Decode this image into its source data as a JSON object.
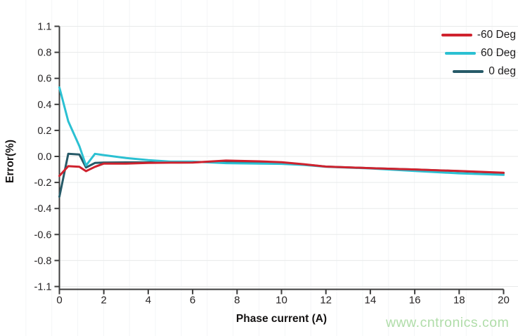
{
  "watermark": {
    "text": "www.cntronics.com",
    "color": "#b0dda9"
  },
  "chart_data": {
    "type": "line",
    "title": "",
    "xlabel": "Phase current (A)",
    "ylabel": "Error(%)",
    "xlim": [
      0,
      20
    ],
    "ylim": [
      -1.1,
      1.1
    ],
    "x_ticks": [
      0,
      2,
      4,
      6,
      8,
      10,
      12,
      14,
      16,
      18,
      20
    ],
    "y_tick_labels": [
      "1.1",
      "0.8",
      "0.6",
      "0.4",
      "0.2",
      "0.0",
      "-0.2",
      "-0.4",
      "-0.6",
      "-0.8",
      "-1.1"
    ],
    "grid": "horizontal",
    "legend_position": "top-right",
    "axis_color": "#3c3c3c",
    "grid_color": "#e8eaea",
    "x": [
      0,
      0.4,
      0.9,
      1.2,
      1.6,
      2,
      3,
      4,
      5,
      6,
      7.5,
      9,
      10,
      11,
      12,
      14,
      16,
      18,
      20
    ],
    "series": [
      {
        "name": "-60 Deg",
        "color": "#cf222e",
        "values": [
          -0.15,
          -0.075,
          -0.08,
          -0.113,
          -0.08,
          -0.055,
          -0.055,
          -0.05,
          -0.048,
          -0.047,
          -0.032,
          -0.038,
          -0.045,
          -0.06,
          -0.078,
          -0.09,
          -0.1,
          -0.112,
          -0.125
        ]
      },
      {
        "name": "60 Deg",
        "color": "#2bc0d2",
        "values": [
          0.53,
          0.27,
          0.08,
          -0.07,
          0.02,
          0.01,
          -0.012,
          -0.028,
          -0.04,
          -0.04,
          -0.052,
          -0.055,
          -0.057,
          -0.065,
          -0.08,
          -0.092,
          -0.112,
          -0.13,
          -0.142
        ]
      },
      {
        "name": "0 deg",
        "color": "#265a68",
        "values": [
          -0.31,
          0.02,
          0.015,
          -0.085,
          -0.05,
          -0.047,
          -0.046,
          -0.046,
          -0.046,
          -0.045,
          -0.04,
          -0.046,
          -0.05,
          -0.062,
          -0.078,
          -0.09,
          -0.1,
          -0.113,
          -0.128
        ]
      }
    ],
    "draw_order": [
      2,
      1,
      0
    ]
  }
}
